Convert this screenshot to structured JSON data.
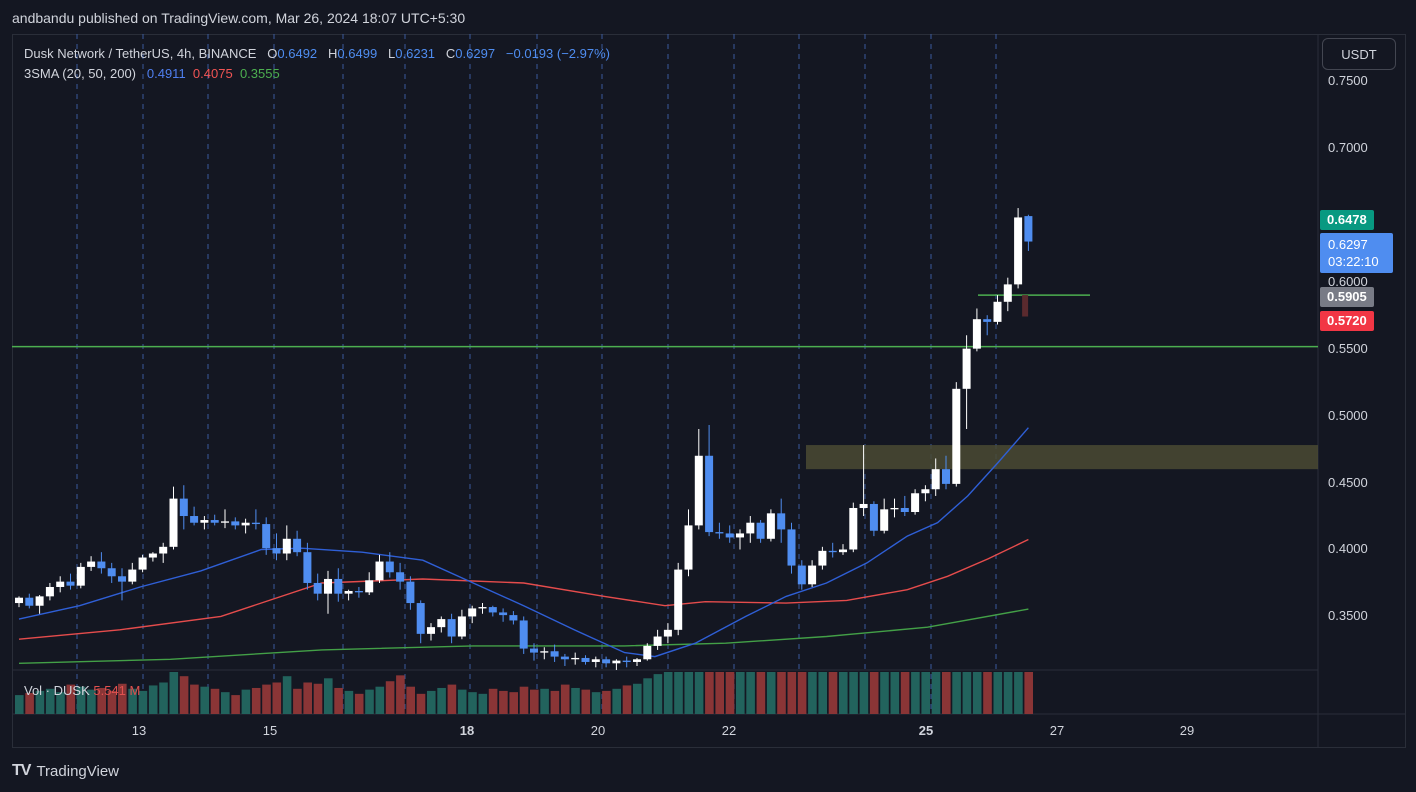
{
  "header": {
    "published": "andbandu published on TradingView.com, Mar 26, 2024 18:07 UTC+5:30"
  },
  "legend": {
    "symbol": "Dusk Network / TetherUS, 4h, BINANCE",
    "o_key": "O",
    "o_val": "0.6492",
    "h_key": "H",
    "h_val": "0.6499",
    "l_key": "L",
    "l_val": "0.6231",
    "c_key": "C",
    "c_val": "0.6297",
    "change": "−0.0193 (−2.97%)",
    "sma_name": "3SMA (20, 50, 200)",
    "sma20": "0.4911",
    "sma50": "0.4075",
    "sma200": "0.3555"
  },
  "volume_legend": {
    "label": "Vol · DUSK",
    "value": "5.541 M"
  },
  "currency": "USDT",
  "badges": {
    "high": "0.6478",
    "current_price": "0.6297",
    "countdown": "03:22:10",
    "level_grey": "0.5905",
    "level_red": "0.5720"
  },
  "footer": {
    "brand": "TradingView"
  },
  "chart_data": {
    "type": "candlestick",
    "symbol": "Dusk Network / TetherUS",
    "timeframe": "4h",
    "exchange": "BINANCE",
    "y_ticks": [
      0.75,
      0.7,
      0.6,
      0.55,
      0.5,
      0.45,
      0.4,
      0.35
    ],
    "y_tick_labels": [
      "0.7500",
      "0.7000",
      "0.6000",
      "0.5500",
      "0.5000",
      "0.4500",
      "0.4000",
      "0.3500"
    ],
    "ylim": [
      0.31,
      0.785
    ],
    "x_ticks": [
      {
        "label": "13",
        "bold": false
      },
      {
        "label": "15",
        "bold": false
      },
      {
        "label": "18",
        "bold": true
      },
      {
        "label": "20",
        "bold": false
      },
      {
        "label": "22",
        "bold": false
      },
      {
        "label": "25",
        "bold": true
      },
      {
        "label": "27",
        "bold": false
      },
      {
        "label": "29",
        "bold": false
      }
    ],
    "colors": {
      "up": "#ffffff",
      "down": "#4f8df0",
      "vol_up": "#22635d",
      "vol_down": "#8a3536",
      "sma20": "#2f5fd6",
      "sma50": "#e54c4c",
      "sma200": "#43a047",
      "hline": "#4caf50",
      "zone": "#4a4a33"
    },
    "horizontal_lines": [
      0.5515,
      0.59
    ],
    "zone": [
      0.46,
      0.478
    ],
    "candles": [
      [
        0.36,
        0.365,
        0.357,
        0.364
      ],
      [
        0.364,
        0.367,
        0.356,
        0.358
      ],
      [
        0.358,
        0.366,
        0.352,
        0.365
      ],
      [
        0.365,
        0.375,
        0.362,
        0.372
      ],
      [
        0.372,
        0.38,
        0.368,
        0.376
      ],
      [
        0.376,
        0.382,
        0.37,
        0.373
      ],
      [
        0.373,
        0.39,
        0.371,
        0.387
      ],
      [
        0.387,
        0.395,
        0.384,
        0.391
      ],
      [
        0.391,
        0.398,
        0.382,
        0.386
      ],
      [
        0.386,
        0.39,
        0.375,
        0.38
      ],
      [
        0.38,
        0.386,
        0.362,
        0.376
      ],
      [
        0.376,
        0.39,
        0.374,
        0.385
      ],
      [
        0.385,
        0.396,
        0.383,
        0.394
      ],
      [
        0.394,
        0.398,
        0.391,
        0.397
      ],
      [
        0.397,
        0.405,
        0.39,
        0.402
      ],
      [
        0.402,
        0.447,
        0.4,
        0.438
      ],
      [
        0.438,
        0.448,
        0.415,
        0.425
      ],
      [
        0.425,
        0.432,
        0.418,
        0.42
      ],
      [
        0.42,
        0.425,
        0.415,
        0.422
      ],
      [
        0.422,
        0.426,
        0.418,
        0.42
      ],
      [
        0.42,
        0.43,
        0.416,
        0.421
      ],
      [
        0.421,
        0.424,
        0.415,
        0.418
      ],
      [
        0.418,
        0.423,
        0.412,
        0.42
      ],
      [
        0.42,
        0.43,
        0.415,
        0.419
      ],
      [
        0.419,
        0.424,
        0.396,
        0.401
      ],
      [
        0.401,
        0.412,
        0.392,
        0.397
      ],
      [
        0.397,
        0.418,
        0.392,
        0.408
      ],
      [
        0.408,
        0.414,
        0.395,
        0.398
      ],
      [
        0.398,
        0.405,
        0.37,
        0.375
      ],
      [
        0.375,
        0.382,
        0.362,
        0.367
      ],
      [
        0.367,
        0.384,
        0.352,
        0.378
      ],
      [
        0.378,
        0.386,
        0.361,
        0.367
      ],
      [
        0.367,
        0.37,
        0.362,
        0.369
      ],
      [
        0.369,
        0.372,
        0.364,
        0.368
      ],
      [
        0.368,
        0.383,
        0.366,
        0.377
      ],
      [
        0.377,
        0.396,
        0.375,
        0.391
      ],
      [
        0.391,
        0.398,
        0.379,
        0.383
      ],
      [
        0.383,
        0.39,
        0.37,
        0.376
      ],
      [
        0.376,
        0.38,
        0.355,
        0.36
      ],
      [
        0.36,
        0.362,
        0.33,
        0.337
      ],
      [
        0.337,
        0.345,
        0.332,
        0.342
      ],
      [
        0.342,
        0.35,
        0.338,
        0.348
      ],
      [
        0.348,
        0.352,
        0.33,
        0.335
      ],
      [
        0.335,
        0.355,
        0.333,
        0.35
      ],
      [
        0.35,
        0.358,
        0.345,
        0.356
      ],
      [
        0.356,
        0.36,
        0.352,
        0.357
      ],
      [
        0.357,
        0.358,
        0.35,
        0.353
      ],
      [
        0.353,
        0.356,
        0.346,
        0.351
      ],
      [
        0.351,
        0.354,
        0.344,
        0.347
      ],
      [
        0.347,
        0.35,
        0.322,
        0.326
      ],
      [
        0.326,
        0.33,
        0.317,
        0.323
      ],
      [
        0.323,
        0.327,
        0.318,
        0.324
      ],
      [
        0.324,
        0.329,
        0.316,
        0.32
      ],
      [
        0.32,
        0.322,
        0.313,
        0.318
      ],
      [
        0.318,
        0.323,
        0.314,
        0.319
      ],
      [
        0.319,
        0.321,
        0.314,
        0.316
      ],
      [
        0.316,
        0.32,
        0.312,
        0.318
      ],
      [
        0.318,
        0.32,
        0.312,
        0.315
      ],
      [
        0.315,
        0.318,
        0.31,
        0.317
      ],
      [
        0.317,
        0.32,
        0.312,
        0.316
      ],
      [
        0.316,
        0.319,
        0.313,
        0.318
      ],
      [
        0.318,
        0.33,
        0.317,
        0.328
      ],
      [
        0.328,
        0.34,
        0.325,
        0.335
      ],
      [
        0.335,
        0.345,
        0.33,
        0.34
      ],
      [
        0.34,
        0.39,
        0.336,
        0.385
      ],
      [
        0.385,
        0.43,
        0.38,
        0.418
      ],
      [
        0.418,
        0.49,
        0.415,
        0.47
      ],
      [
        0.47,
        0.493,
        0.41,
        0.413
      ],
      [
        0.413,
        0.42,
        0.408,
        0.412
      ],
      [
        0.412,
        0.418,
        0.405,
        0.409
      ],
      [
        0.409,
        0.415,
        0.4,
        0.412
      ],
      [
        0.412,
        0.425,
        0.405,
        0.42
      ],
      [
        0.42,
        0.422,
        0.405,
        0.408
      ],
      [
        0.408,
        0.43,
        0.406,
        0.427
      ],
      [
        0.427,
        0.438,
        0.405,
        0.415
      ],
      [
        0.415,
        0.42,
        0.382,
        0.388
      ],
      [
        0.388,
        0.392,
        0.37,
        0.374
      ],
      [
        0.374,
        0.392,
        0.372,
        0.388
      ],
      [
        0.388,
        0.402,
        0.385,
        0.399
      ],
      [
        0.399,
        0.405,
        0.394,
        0.398
      ],
      [
        0.398,
        0.404,
        0.396,
        0.4
      ],
      [
        0.4,
        0.435,
        0.398,
        0.431
      ],
      [
        0.431,
        0.478,
        0.425,
        0.434
      ],
      [
        0.434,
        0.436,
        0.41,
        0.414
      ],
      [
        0.414,
        0.438,
        0.412,
        0.43
      ],
      [
        0.43,
        0.438,
        0.424,
        0.431
      ],
      [
        0.431,
        0.44,
        0.425,
        0.428
      ],
      [
        0.428,
        0.445,
        0.426,
        0.442
      ],
      [
        0.442,
        0.448,
        0.436,
        0.445
      ],
      [
        0.445,
        0.468,
        0.44,
        0.46
      ],
      [
        0.46,
        0.47,
        0.445,
        0.449
      ],
      [
        0.449,
        0.525,
        0.447,
        0.52
      ],
      [
        0.52,
        0.56,
        0.49,
        0.55
      ],
      [
        0.55,
        0.58,
        0.548,
        0.572
      ],
      [
        0.572,
        0.575,
        0.56,
        0.57
      ],
      [
        0.57,
        0.59,
        0.568,
        0.585
      ],
      [
        0.585,
        0.603,
        0.578,
        0.598
      ],
      [
        0.598,
        0.655,
        0.595,
        0.648
      ],
      [
        0.649,
        0.65,
        0.623,
        0.63
      ]
    ],
    "volume_rel": [
      0.45,
      0.5,
      0.55,
      0.6,
      0.52,
      0.7,
      0.65,
      0.58,
      0.62,
      0.55,
      0.72,
      0.6,
      0.55,
      0.68,
      0.75,
      1.0,
      0.9,
      0.7,
      0.65,
      0.6,
      0.52,
      0.45,
      0.58,
      0.62,
      0.7,
      0.75,
      0.9,
      0.6,
      0.75,
      0.72,
      0.85,
      0.62,
      0.55,
      0.48,
      0.58,
      0.65,
      0.78,
      0.92,
      0.65,
      0.48,
      0.55,
      0.62,
      0.7,
      0.58,
      0.52,
      0.48,
      0.6,
      0.55,
      0.52,
      0.65,
      0.58,
      0.6,
      0.55,
      0.7,
      0.62,
      0.58,
      0.52,
      0.55,
      0.6,
      0.68,
      0.72,
      0.85,
      0.95,
      1.0,
      1.0,
      1.0,
      1.0,
      1.0,
      1.0,
      1.0,
      1.0,
      1.0,
      1.0,
      1.0,
      1.0,
      1.0,
      1.0,
      1.0,
      1.0,
      1.0,
      1.0,
      1.0,
      1.0,
      1.0,
      1.0,
      1.0,
      1.0,
      1.0,
      1.0,
      1.0,
      1.0,
      1.0,
      1.0,
      1.0,
      1.0,
      1.0,
      1.0,
      1.0,
      1.0
    ],
    "sma20": [
      [
        0,
        0.348
      ],
      [
        6,
        0.358
      ],
      [
        12,
        0.372
      ],
      [
        18,
        0.384
      ],
      [
        24,
        0.4
      ],
      [
        28,
        0.401
      ],
      [
        34,
        0.398
      ],
      [
        40,
        0.392
      ],
      [
        45,
        0.375
      ],
      [
        50,
        0.358
      ],
      [
        55,
        0.34
      ],
      [
        60,
        0.323
      ],
      [
        63,
        0.32
      ],
      [
        67,
        0.33
      ],
      [
        72,
        0.35
      ],
      [
        76,
        0.365
      ],
      [
        80,
        0.375
      ],
      [
        84,
        0.39
      ],
      [
        88,
        0.41
      ],
      [
        91,
        0.42
      ],
      [
        94,
        0.44
      ],
      [
        97,
        0.465
      ],
      [
        100,
        0.491
      ]
    ],
    "sma50": [
      [
        0,
        0.333
      ],
      [
        10,
        0.34
      ],
      [
        20,
        0.35
      ],
      [
        30,
        0.375
      ],
      [
        40,
        0.378
      ],
      [
        50,
        0.375
      ],
      [
        58,
        0.365
      ],
      [
        64,
        0.358
      ],
      [
        68,
        0.361
      ],
      [
        76,
        0.36
      ],
      [
        82,
        0.362
      ],
      [
        88,
        0.37
      ],
      [
        92,
        0.38
      ],
      [
        96,
        0.393
      ],
      [
        100,
        0.4075
      ]
    ],
    "sma200": [
      [
        0,
        0.315
      ],
      [
        15,
        0.318
      ],
      [
        30,
        0.325
      ],
      [
        45,
        0.328
      ],
      [
        60,
        0.328
      ],
      [
        70,
        0.33
      ],
      [
        80,
        0.335
      ],
      [
        90,
        0.342
      ],
      [
        100,
        0.3555
      ]
    ]
  }
}
